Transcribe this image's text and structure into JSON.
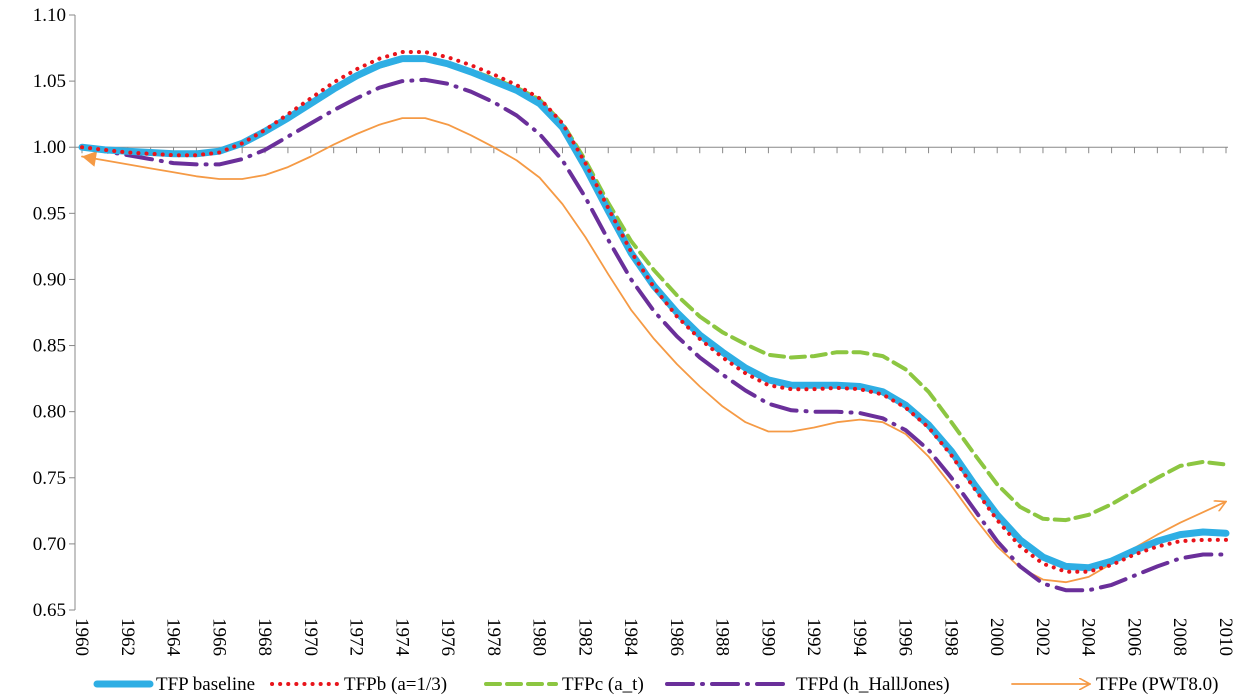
{
  "chart_data": {
    "type": "line",
    "categories": [
      "1960",
      null,
      "1962",
      null,
      "1964",
      null,
      "1966",
      null,
      "1968",
      null,
      "1970",
      null,
      "1972",
      null,
      "1974",
      null,
      "1976",
      null,
      "1978",
      null,
      "1980",
      null,
      "1982",
      null,
      "1984",
      null,
      "1986",
      null,
      "1988",
      null,
      "1990",
      null,
      "1992",
      null,
      "1994",
      null,
      "1996",
      null,
      "1998",
      null,
      "2000",
      null,
      "2002",
      null,
      "2004",
      null,
      "2006",
      null,
      "2008",
      null,
      "2010"
    ],
    "ylim": [
      0.65,
      1.1
    ],
    "yticks": [
      {
        "value": 0.65,
        "label": "0.65"
      },
      {
        "value": 0.7,
        "label": "0.70"
      },
      {
        "value": 0.75,
        "label": "0.75"
      },
      {
        "value": 0.8,
        "label": "0.80"
      },
      {
        "value": 0.85,
        "label": "0.85"
      },
      {
        "value": 0.9,
        "label": "0.90"
      },
      {
        "value": 0.95,
        "label": "0.95"
      },
      {
        "value": 1.0,
        "label": "1.00"
      },
      {
        "value": 1.05,
        "label": "1.05"
      },
      {
        "value": 1.1,
        "label": "1.10"
      }
    ],
    "x_axis_crosses": 1.0,
    "legend": "bottom",
    "series": [
      {
        "name": "TFP baseline",
        "color": "#2eaee4",
        "line_style": "solid",
        "line_width": 7,
        "values": [
          1.0,
          0.998,
          0.997,
          0.996,
          0.995,
          0.995,
          0.997,
          1.003,
          1.012,
          1.022,
          1.033,
          1.044,
          1.054,
          1.062,
          1.067,
          1.067,
          1.063,
          1.057,
          1.05,
          1.043,
          1.033,
          1.015,
          0.985,
          0.952,
          0.92,
          0.895,
          0.875,
          0.858,
          0.845,
          0.833,
          0.824,
          0.82,
          0.82,
          0.82,
          0.819,
          0.815,
          0.805,
          0.79,
          0.77,
          0.745,
          0.722,
          0.703,
          0.69,
          0.683,
          0.682,
          0.687,
          0.695,
          0.702,
          0.707,
          0.709,
          0.708
        ]
      },
      {
        "name": "TFPb (a=1/3)",
        "color": "#e8141b",
        "line_style": "dotted",
        "line_width": 4,
        "values": [
          1.0,
          0.998,
          0.996,
          0.995,
          0.994,
          0.994,
          0.996,
          1.003,
          1.013,
          1.025,
          1.037,
          1.049,
          1.059,
          1.067,
          1.072,
          1.072,
          1.068,
          1.062,
          1.055,
          1.047,
          1.037,
          1.018,
          0.988,
          0.954,
          0.921,
          0.894,
          0.872,
          0.855,
          0.841,
          0.829,
          0.82,
          0.817,
          0.817,
          0.818,
          0.817,
          0.813,
          0.803,
          0.788,
          0.767,
          0.742,
          0.718,
          0.698,
          0.685,
          0.679,
          0.679,
          0.684,
          0.692,
          0.698,
          0.702,
          0.703,
          0.703
        ]
      },
      {
        "name": "TFPc (a_t)",
        "color": "#8cc641",
        "line_style": "dashed",
        "line_width": 4,
        "values": [
          1.0,
          0.998,
          0.997,
          0.996,
          0.995,
          0.995,
          0.997,
          1.003,
          1.012,
          1.022,
          1.032,
          1.043,
          1.053,
          1.061,
          1.066,
          1.067,
          1.063,
          1.058,
          1.052,
          1.045,
          1.036,
          1.018,
          0.99,
          0.958,
          0.929,
          0.907,
          0.888,
          0.872,
          0.86,
          0.851,
          0.843,
          0.841,
          0.842,
          0.845,
          0.845,
          0.842,
          0.832,
          0.815,
          0.792,
          0.768,
          0.745,
          0.728,
          0.719,
          0.718,
          0.722,
          0.73,
          0.74,
          0.75,
          0.759,
          0.762,
          0.76
        ]
      },
      {
        "name": "TFPd (h_HallJones)",
        "color": "#6a2f9a",
        "line_style": "dashdot",
        "line_width": 4,
        "values": [
          1.0,
          0.997,
          0.994,
          0.991,
          0.988,
          0.987,
          0.987,
          0.991,
          0.998,
          1.008,
          1.018,
          1.028,
          1.037,
          1.045,
          1.05,
          1.051,
          1.048,
          1.042,
          1.034,
          1.024,
          1.01,
          0.99,
          0.962,
          0.93,
          0.9,
          0.876,
          0.857,
          0.841,
          0.828,
          0.816,
          0.806,
          0.801,
          0.8,
          0.8,
          0.799,
          0.795,
          0.786,
          0.771,
          0.75,
          0.726,
          0.702,
          0.683,
          0.67,
          0.665,
          0.665,
          0.669,
          0.676,
          0.683,
          0.689,
          0.692,
          0.692
        ]
      },
      {
        "name": "TFPe (PWT8.0)",
        "color": "#f59a45",
        "line_style": "arrow",
        "line_width": 1.8,
        "values": [
          0.993,
          0.99,
          0.987,
          0.984,
          0.981,
          0.978,
          0.976,
          0.976,
          0.979,
          0.985,
          0.993,
          1.002,
          1.01,
          1.017,
          1.022,
          1.022,
          1.017,
          1.009,
          1.0,
          0.99,
          0.977,
          0.957,
          0.932,
          0.904,
          0.877,
          0.855,
          0.836,
          0.819,
          0.804,
          0.792,
          0.785,
          0.785,
          0.788,
          0.792,
          0.794,
          0.792,
          0.783,
          0.766,
          0.744,
          0.72,
          0.698,
          0.682,
          0.673,
          0.671,
          0.675,
          0.685,
          0.697,
          0.707,
          0.716,
          0.724,
          0.732
        ]
      }
    ]
  }
}
